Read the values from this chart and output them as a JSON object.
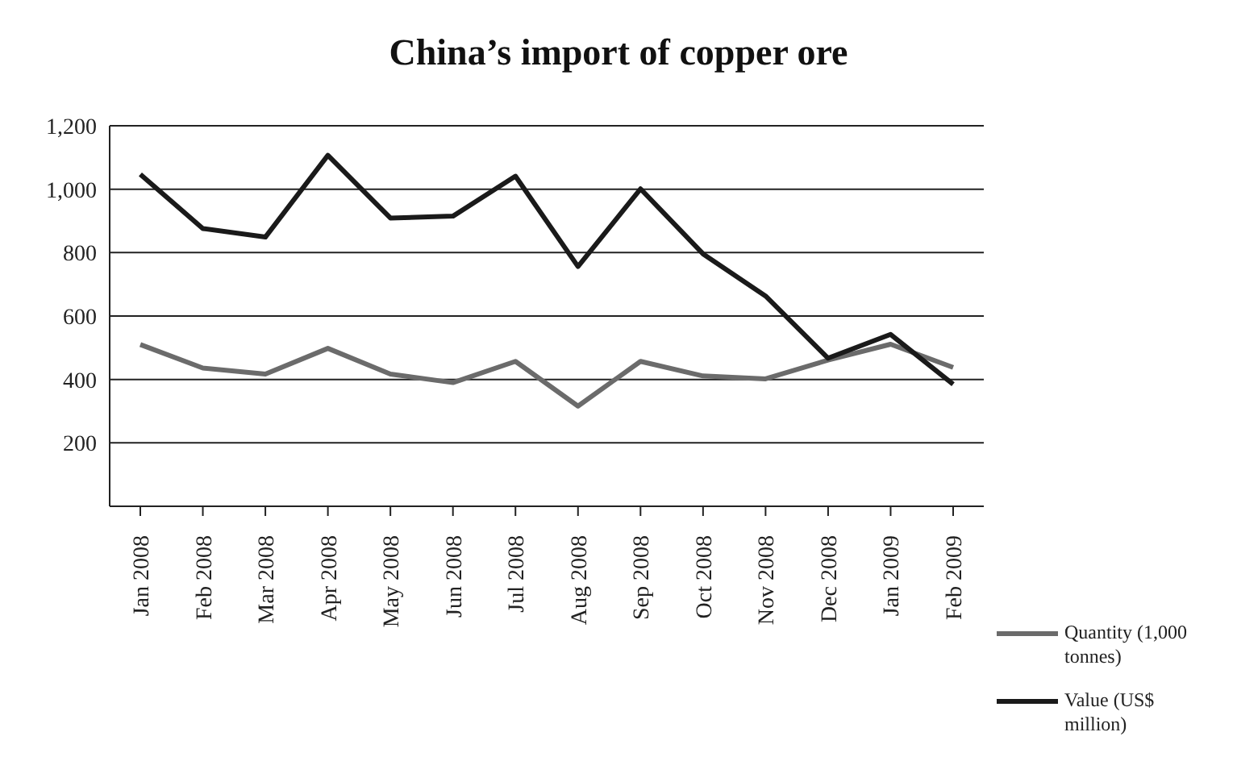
{
  "chart_data": {
    "type": "line",
    "title": "China’s import of copper ore",
    "categories": [
      "Jan 2008",
      "Feb 2008",
      "Mar 2008",
      "Apr 2008",
      "May 2008",
      "Jun 2008",
      "Jul 2008",
      "Aug 2008",
      "Sep 2008",
      "Oct 2008",
      "Nov 2008",
      "Dec 2008",
      "Jan 2009",
      "Feb 2009"
    ],
    "series": [
      {
        "name": "Quantity (1,000 tonnes)",
        "color": "#6b6b6b",
        "values": [
          510,
          436,
          417,
          498,
          417,
          390,
          457,
          316,
          457,
          411,
          402,
          461,
          511,
          438
        ]
      },
      {
        "name": "Value (US$ million)",
        "color": "#1a1a1a",
        "values": [
          1047,
          876,
          849,
          1107,
          909,
          915,
          1041,
          756,
          1001,
          796,
          663,
          467,
          542,
          385
        ]
      }
    ],
    "ylim": [
      0,
      1200
    ],
    "yticks": [
      {
        "value": 0,
        "label": null
      },
      200,
      400,
      600,
      800,
      {
        "value": 1000,
        "label": "1,000"
      },
      {
        "value": 1200,
        "label": "1,200"
      }
    ],
    "grid": "y",
    "legend": "bottom right",
    "marker": "none",
    "line_style": "solid"
  }
}
